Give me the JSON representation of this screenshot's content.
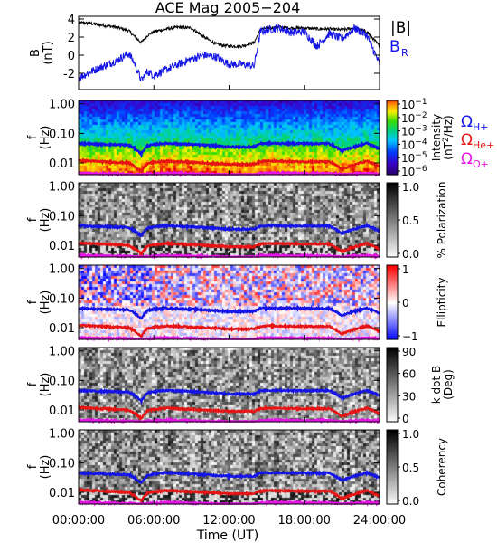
{
  "title": "ACE Mag 2005−204",
  "xaxis": {
    "label": "Time (UT)",
    "ticks": [
      "00:00:00",
      "06:00:00",
      "12:00:00",
      "18:00:00",
      "24:00:00"
    ],
    "tick_hours": [
      0,
      6,
      12,
      18,
      24
    ]
  },
  "field_panel": {
    "ylabel_top": "B",
    "ylabel_bottom": "(nT)",
    "yticks": [
      -2,
      0,
      2,
      4
    ],
    "ylim": [
      -3.8,
      4.3
    ],
    "legend": {
      "btotal": "|B|",
      "br": "B",
      "br_sub": "R"
    },
    "colors": {
      "btotal": "#000000",
      "br": "#1414e6"
    }
  },
  "freq_panels": {
    "ylabel_top": "f",
    "ylabel_bottom": "(Hz)",
    "yticks": [
      "1.00",
      "0.10",
      "0.01"
    ],
    "ylim_hz": [
      0.004,
      1.3
    ],
    "yscale": "log"
  },
  "colorbars": {
    "intensity": {
      "label": "Intensity",
      "label2": "(nT",
      "label2_sup": "2",
      "label2_end": "/Hz)",
      "ticks": [
        {
          "base": "10",
          "exp": "−1"
        },
        {
          "base": "10",
          "exp": "−2"
        },
        {
          "base": "10",
          "exp": "−3"
        },
        {
          "base": "10",
          "exp": "−4"
        },
        {
          "base": "10",
          "exp": "−5"
        },
        {
          "base": "10",
          "exp": "−6"
        }
      ],
      "colormap": "rainbow"
    },
    "polarization": {
      "label": "% Polarization",
      "ticks": [
        "1.0",
        "0.5",
        "0.0"
      ],
      "colormap": "gray"
    },
    "ellipticity": {
      "label": "Ellipticity",
      "ticks": [
        "1",
        "0",
        "−1"
      ],
      "colormap": "blue-white-red"
    },
    "kdotb": {
      "label": "k dot B",
      "label2": "(Deg)",
      "ticks": [
        "90",
        "60",
        "30",
        "0"
      ],
      "colormap": "gray"
    },
    "coherency": {
      "label": "Coherency",
      "ticks": [
        "1.0",
        "0.5",
        "0.0"
      ],
      "colormap": "gray"
    }
  },
  "gyro_legend": {
    "h": {
      "sym": "Ω",
      "sub": "H+",
      "color": "#1414e6"
    },
    "he": {
      "sym": "Ω",
      "sub": "He+",
      "color": "#e61414"
    },
    "o": {
      "sym": "Ω",
      "sub": "O+",
      "color": "#e614e6"
    }
  },
  "chart_data": [
    {
      "type": "line",
      "title": "ACE Mag 2005−204",
      "xlabel": "Time (UT)",
      "ylabel": "B (nT)",
      "ylim": [
        -3.8,
        4.3
      ],
      "xlim_hours": [
        0,
        24
      ],
      "series": [
        {
          "name": "|B|",
          "x_hours": [
            0,
            1,
            2,
            3,
            4,
            4.5,
            5,
            5.5,
            6,
            7,
            8,
            9,
            10,
            11,
            12,
            13,
            14,
            14.5,
            15,
            16,
            17,
            18,
            19,
            20,
            21,
            22,
            23,
            24
          ],
          "values": [
            3.6,
            3.5,
            3.3,
            3.1,
            2.7,
            2.0,
            1.4,
            2.2,
            2.6,
            2.9,
            3.1,
            3.0,
            2.0,
            1.2,
            1.0,
            1.0,
            1.4,
            2.8,
            3.0,
            3.1,
            3.0,
            3.0,
            2.9,
            2.9,
            2.8,
            3.0,
            2.6,
            1.0
          ]
        },
        {
          "name": "B",
          "x_hours": [
            0,
            1,
            2,
            3,
            4,
            4.5,
            5,
            5.5,
            6,
            7,
            8,
            9,
            10,
            11,
            12,
            13,
            14,
            14.5,
            15,
            16,
            17,
            18,
            19,
            20,
            21,
            22,
            23,
            24
          ],
          "values": [
            -2.5,
            -1.8,
            -1.2,
            -0.6,
            0.2,
            -1.0,
            -2.8,
            -1.8,
            -2.2,
            -1.6,
            -1.0,
            -0.4,
            0.0,
            -0.2,
            -1.0,
            -1.0,
            -1.2,
            2.6,
            2.8,
            3.0,
            2.5,
            2.6,
            1.0,
            2.4,
            1.8,
            3.0,
            2.2,
            -1.0
          ]
        }
      ]
    },
    {
      "type": "line",
      "title": "",
      "xlabel": "Time (UT)",
      "ylabel": "f (Hz)",
      "yscale": "log",
      "ylim": [
        0.004,
        1.3
      ],
      "series": [
        {
          "name": "ΩH+",
          "x_hours": [
            0,
            4,
            5,
            5.5,
            6,
            7,
            10,
            12,
            14,
            14.5,
            15,
            18,
            20,
            21,
            23,
            24
          ],
          "values": [
            0.045,
            0.04,
            0.02,
            0.038,
            0.042,
            0.046,
            0.04,
            0.035,
            0.035,
            0.045,
            0.046,
            0.045,
            0.045,
            0.025,
            0.046,
            0.03
          ]
        },
        {
          "name": "ΩHe+",
          "x_hours": [
            0,
            4,
            5,
            5.5,
            6,
            7,
            10,
            12,
            14,
            14.5,
            15,
            18,
            20,
            21,
            23,
            24
          ],
          "values": [
            0.012,
            0.01,
            0.005,
            0.0095,
            0.0105,
            0.0115,
            0.01,
            0.009,
            0.009,
            0.011,
            0.0115,
            0.011,
            0.011,
            0.006,
            0.0115,
            0.0075
          ]
        },
        {
          "name": "ΩO+",
          "x_hours": [
            0,
            4,
            5,
            5.5,
            6,
            7,
            10,
            12,
            14,
            14.5,
            15,
            18,
            20,
            21,
            23,
            24
          ],
          "values": [
            0.0045,
            0.0042,
            0.004,
            0.0042,
            0.0043,
            0.0045,
            0.0042,
            0.004,
            0.004,
            0.0044,
            0.0045,
            0.0044,
            0.0044,
            0.004,
            0.0045,
            0.0042
          ]
        }
      ]
    }
  ]
}
